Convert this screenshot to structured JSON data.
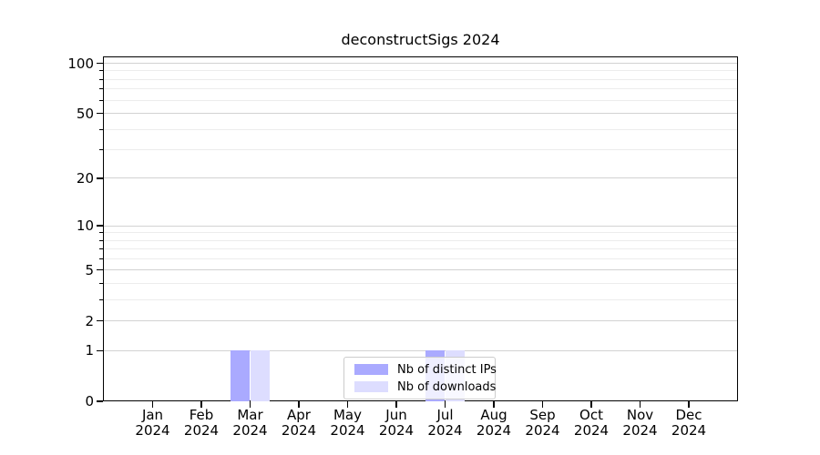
{
  "title": "deconstructSigs 2024",
  "chart_data": {
    "type": "bar",
    "title": "deconstructSigs 2024",
    "months": [
      "Jan",
      "Feb",
      "Mar",
      "Apr",
      "May",
      "Jun",
      "Jul",
      "Aug",
      "Sep",
      "Oct",
      "Nov",
      "Dec"
    ],
    "year_label": "2024",
    "categories": [
      "Jan 2024",
      "Feb 2024",
      "Mar 2024",
      "Apr 2024",
      "May 2024",
      "Jun 2024",
      "Jul 2024",
      "Aug 2024",
      "Sep 2024",
      "Oct 2024",
      "Nov 2024",
      "Dec 2024"
    ],
    "series": [
      {
        "name": "Nb of distinct IPs",
        "color": "#aaaaff",
        "values": [
          0,
          0,
          1,
          0,
          0,
          0,
          1,
          0,
          0,
          0,
          0,
          0
        ]
      },
      {
        "name": "Nb of downloads",
        "color": "#ddddff",
        "values": [
          0,
          0,
          1,
          0,
          0,
          0,
          1,
          0,
          0,
          0,
          0,
          0
        ]
      }
    ],
    "y_scale": "log10(1+y)",
    "y_major_ticks": [
      0,
      1,
      2,
      5,
      10,
      20,
      50,
      100
    ],
    "y_minor_ticks": [
      3,
      4,
      6,
      7,
      8,
      9,
      30,
      40,
      60,
      70,
      80,
      90
    ],
    "ylim": [
      0,
      110
    ],
    "xlabel": "",
    "ylabel": "",
    "grid": true,
    "legend_position": "lower center",
    "colors": {
      "grid_major": "#d2d2d2",
      "grid_minor": "#ececec",
      "spine": "#000000",
      "legend_border": "#cccccc"
    }
  }
}
